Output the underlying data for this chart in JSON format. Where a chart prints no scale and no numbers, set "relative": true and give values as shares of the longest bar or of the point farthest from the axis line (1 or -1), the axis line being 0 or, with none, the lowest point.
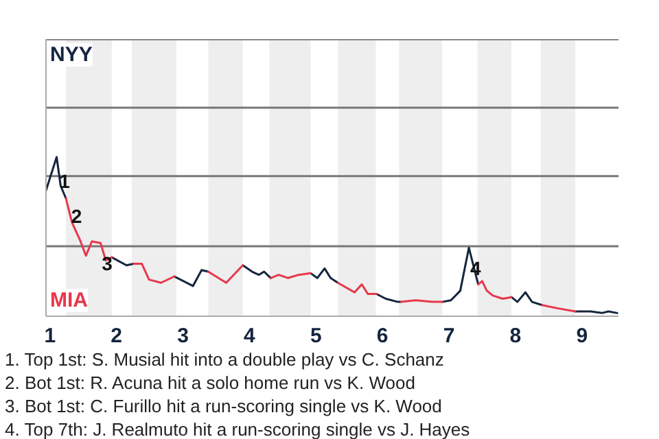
{
  "chart_data": {
    "type": "line",
    "relative": true,
    "tick_labels": "x",
    "x": [
      0.94,
      1.1,
      1.16,
      1.24,
      1.33,
      1.46,
      1.54,
      1.63,
      1.76,
      1.84,
      1.93,
      2.15,
      2.26,
      2.38,
      2.49,
      2.67,
      2.87,
      3.15,
      3.28,
      3.38,
      3.65,
      3.9,
      4.04,
      4.14,
      4.22,
      4.32,
      4.44,
      4.58,
      4.74,
      4.92,
      5.02,
      5.13,
      5.22,
      5.33,
      5.58,
      5.69,
      5.78,
      5.91,
      6.05,
      6.23,
      6.28,
      6.5,
      6.75,
      6.9,
      7.03,
      7.17,
      7.3,
      7.44,
      7.5,
      7.57,
      7.66,
      7.81,
      7.94,
      8.03,
      8.15,
      8.25,
      8.4,
      8.63,
      8.9,
      9.13,
      9.3,
      9.4,
      9.53
    ],
    "series": [
      {
        "color": "#14253f",
        "values": [
          0.79,
          1,
          0.82,
          0.74,
          null,
          null,
          null,
          null,
          null,
          null,
          0.37,
          0.32,
          0.33,
          null,
          null,
          null,
          0.25,
          0.19,
          0.29,
          0.28,
          null,
          0.32,
          0.28,
          0.26,
          0.28,
          0.24,
          null,
          null,
          null,
          0.27,
          0.24,
          0.3,
          0.24,
          0.21,
          null,
          null,
          null,
          0.14,
          0.11,
          0.09,
          0.09,
          null,
          null,
          0.09,
          0.1,
          0.16,
          0.43,
          0.2,
          null,
          null,
          null,
          null,
          0.12,
          0.09,
          0.15,
          0.09,
          0.07,
          null,
          0.03,
          0.03,
          0.02,
          0.03,
          0.02
        ]
      },
      {
        "color": "#e8374a",
        "values": [
          null,
          null,
          null,
          0.74,
          0.59,
          0.47,
          0.38,
          0.47,
          0.46,
          0.35,
          0.37,
          null,
          0.33,
          0.33,
          0.23,
          0.21,
          0.25,
          null,
          null,
          0.28,
          0.21,
          0.32,
          null,
          null,
          null,
          0.24,
          0.26,
          0.24,
          0.26,
          0.27,
          null,
          null,
          null,
          0.21,
          0.15,
          0.2,
          0.14,
          0.14,
          null,
          null,
          0.09,
          0.1,
          0.09,
          0.09,
          null,
          null,
          null,
          0.2,
          0.22,
          0.16,
          0.13,
          0.11,
          0.12,
          null,
          null,
          null,
          0.07,
          0.05,
          0.03,
          null,
          null,
          null,
          null
        ]
      }
    ],
    "xlim": [
      0.94,
      9.55
    ],
    "xticks": [
      1,
      2,
      3,
      4,
      5,
      6,
      7,
      8,
      9
    ],
    "ref_lines": [
      {
        "axis": "y",
        "value": 0.44,
        "color": "#777777"
      },
      {
        "axis": "y",
        "value": 0.88,
        "color": "#777777"
      },
      {
        "axis": "y",
        "value": 1.31,
        "color": "#777777"
      },
      {
        "axis": "y",
        "value": 1.74,
        "color": "#777777"
      }
    ],
    "bands": [
      {
        "axis": "x",
        "from": 1.24,
        "to": 1.93,
        "color": "#eeeeee"
      },
      {
        "axis": "x",
        "from": 2.23,
        "to": 2.9,
        "color": "#eeeeee"
      },
      {
        "axis": "x",
        "from": 3.38,
        "to": 3.9,
        "color": "#eeeeee"
      },
      {
        "axis": "x",
        "from": 4.3,
        "to": 4.92,
        "color": "#eeeeee"
      },
      {
        "axis": "x",
        "from": 5.33,
        "to": 5.9,
        "color": "#eeeeee"
      },
      {
        "axis": "x",
        "from": 6.25,
        "to": 6.9,
        "color": "#eeeeee"
      },
      {
        "axis": "x",
        "from": 7.43,
        "to": 7.94,
        "color": "#eeeeee"
      },
      {
        "axis": "x",
        "from": 8.38,
        "to": 8.9,
        "color": "#eeeeee"
      }
    ],
    "annotations": [
      "NYY",
      "MIA",
      {
        "text": "1",
        "x": 1.22,
        "y": 0.85
      },
      {
        "text": "2",
        "x": 1.4,
        "y": 0.63
      },
      {
        "text": "3",
        "x": 1.86,
        "y": 0.33
      },
      {
        "text": "4",
        "x": 7.4,
        "y": 0.3
      },
      "1. Top 1st: S. Musial hit into a double play vs C. Schanz",
      "2. Bot 1st: R. Acuna hit a solo home run vs K. Wood",
      "3. Bot 1st: C. Furillo hit a run-scoring single vs K. Wood",
      "4. Top 7th: J. Realmuto hit a run-scoring single vs J. Hayes"
    ]
  }
}
